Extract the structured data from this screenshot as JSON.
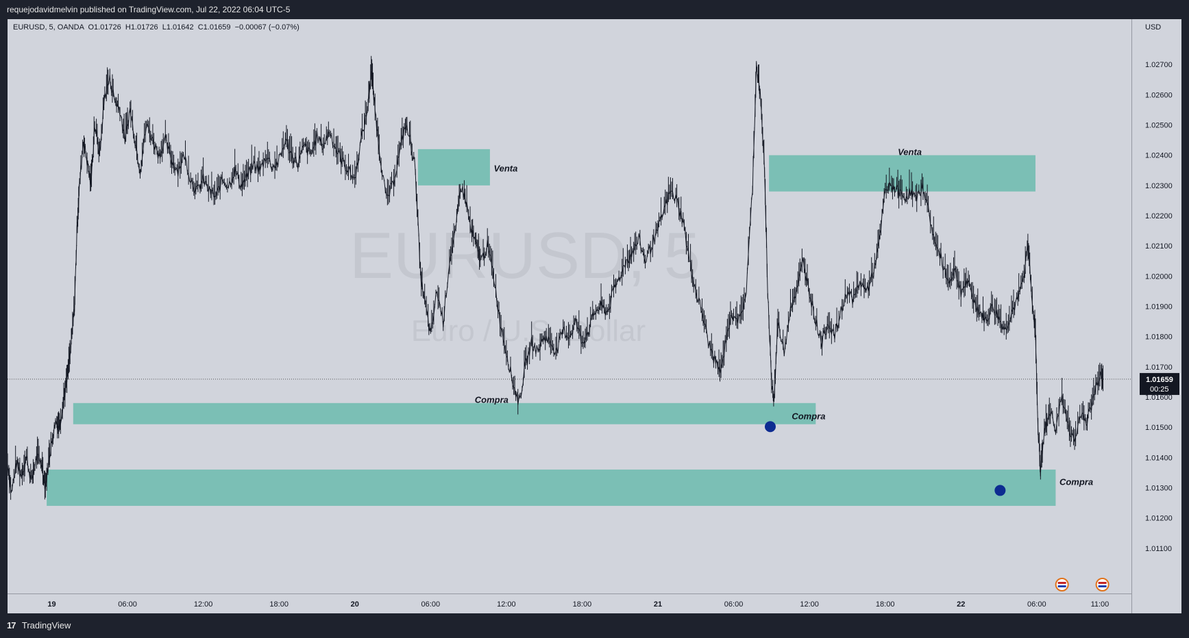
{
  "header": {
    "publisher_text": "requejodavidmelvin published on TradingView.com, Jul 22, 2022 06:04 UTC-5"
  },
  "footer": {
    "brand": "TradingView",
    "logo_icon": "tradingview-logo-icon"
  },
  "legend": {
    "symbol_line": "EURUSD, 5, OANDA",
    "open": "O1.01726",
    "high": "H1.01726",
    "low": "L1.01642",
    "close": "C1.01659",
    "change": "−0.00067 (−0.07%)"
  },
  "watermark": {
    "symbol": "EURUSD, 5",
    "description": "Euro / U.S. Dollar"
  },
  "price_axis": {
    "currency": "USD"
  },
  "price_tag": {
    "price": "1.01659",
    "countdown": "00:25"
  },
  "colors": {
    "zone": "#7bbfb5",
    "marker": "#0d2c91",
    "background": "#d1d4dc",
    "candle": "#131722"
  },
  "chart_data": {
    "type": "line",
    "symbol": "EURUSD",
    "interval": "5",
    "exchange": "OANDA",
    "ylim": [
      1.0095,
      1.0285
    ],
    "y_ticks": [
      1.011,
      1.012,
      1.013,
      1.014,
      1.015,
      1.016,
      1.017,
      1.018,
      1.019,
      1.02,
      1.021,
      1.022,
      1.023,
      1.024,
      1.025,
      1.026,
      1.027
    ],
    "y_tick_labels": [
      "1.01100",
      "1.01200",
      "1.01300",
      "1.01400",
      "1.01500",
      "1.01600",
      "1.01700",
      "1.01800",
      "1.01900",
      "1.02000",
      "1.02100",
      "1.02200",
      "1.02300",
      "1.02400",
      "1.02500",
      "1.02600",
      "1.02700"
    ],
    "x_ticks": [
      {
        "label": "19",
        "hours": 0,
        "bold": true
      },
      {
        "label": "06:00",
        "hours": 6
      },
      {
        "label": "12:00",
        "hours": 12
      },
      {
        "label": "18:00",
        "hours": 18
      },
      {
        "label": "20",
        "hours": 24,
        "bold": true
      },
      {
        "label": "06:00",
        "hours": 30
      },
      {
        "label": "12:00",
        "hours": 36
      },
      {
        "label": "18:00",
        "hours": 42
      },
      {
        "label": "21",
        "hours": 48,
        "bold": true
      },
      {
        "label": "06:00",
        "hours": 54
      },
      {
        "label": "12:00",
        "hours": 60
      },
      {
        "label": "18:00",
        "hours": 66
      },
      {
        "label": "22",
        "hours": 72,
        "bold": true
      },
      {
        "label": "06:00",
        "hours": 78
      },
      {
        "label": "11:00",
        "hours": 83
      }
    ],
    "xlim_hours": [
      -3.5,
      85.5
    ],
    "price_path": [
      [
        -3.5,
        1.0138
      ],
      [
        -3.2,
        1.0128
      ],
      [
        -2.8,
        1.0138
      ],
      [
        -2.4,
        1.0134
      ],
      [
        -2.0,
        1.014
      ],
      [
        -1.6,
        1.0132
      ],
      [
        -1.2,
        1.014
      ],
      [
        -0.8,
        1.0138
      ],
      [
        -0.5,
        1.013
      ],
      [
        -0.2,
        1.014
      ],
      [
        0.0,
        1.0145
      ],
      [
        0.3,
        1.0152
      ],
      [
        0.6,
        1.015
      ],
      [
        0.9,
        1.0158
      ],
      [
        1.2,
        1.0165
      ],
      [
        1.5,
        1.0175
      ],
      [
        1.8,
        1.019
      ],
      [
        2.0,
        1.0215
      ],
      [
        2.2,
        1.023
      ],
      [
        2.5,
        1.0245
      ],
      [
        2.8,
        1.0238
      ],
      [
        3.1,
        1.023
      ],
      [
        3.4,
        1.025
      ],
      [
        3.8,
        1.024
      ],
      [
        4.2,
        1.026
      ],
      [
        4.6,
        1.0265
      ],
      [
        5.0,
        1.0258
      ],
      [
        5.4,
        1.0255
      ],
      [
        5.8,
        1.0245
      ],
      [
        6.2,
        1.0255
      ],
      [
        6.6,
        1.0245
      ],
      [
        7.0,
        1.0235
      ],
      [
        7.5,
        1.025
      ],
      [
        8.0,
        1.0245
      ],
      [
        8.5,
        1.024
      ],
      [
        9.0,
        1.0245
      ],
      [
        9.5,
        1.0238
      ],
      [
        10.0,
        1.0235
      ],
      [
        10.5,
        1.024
      ],
      [
        11.0,
        1.0232
      ],
      [
        11.5,
        1.0228
      ],
      [
        12.0,
        1.0232
      ],
      [
        12.5,
        1.0228
      ],
      [
        13.0,
        1.0226
      ],
      [
        13.5,
        1.0232
      ],
      [
        14.0,
        1.023
      ],
      [
        14.5,
        1.0235
      ],
      [
        15.0,
        1.023
      ],
      [
        15.5,
        1.0233
      ],
      [
        16.0,
        1.0237
      ],
      [
        16.5,
        1.0235
      ],
      [
        17.0,
        1.024
      ],
      [
        17.5,
        1.0236
      ],
      [
        18.0,
        1.0238
      ],
      [
        18.5,
        1.0245
      ],
      [
        19.0,
        1.024
      ],
      [
        19.5,
        1.0237
      ],
      [
        20.0,
        1.0243
      ],
      [
        20.5,
        1.024
      ],
      [
        21.0,
        1.0246
      ],
      [
        21.5,
        1.0243
      ],
      [
        22.0,
        1.0248
      ],
      [
        22.5,
        1.0242
      ],
      [
        23.0,
        1.0238
      ],
      [
        23.5,
        1.0235
      ],
      [
        24.0,
        1.0232
      ],
      [
        24.5,
        1.0245
      ],
      [
        25.0,
        1.0255
      ],
      [
        25.3,
        1.0268
      ],
      [
        25.6,
        1.0255
      ],
      [
        26.0,
        1.024
      ],
      [
        26.5,
        1.0225
      ],
      [
        27.0,
        1.023
      ],
      [
        27.5,
        1.024
      ],
      [
        28.0,
        1.025
      ],
      [
        28.4,
        1.0245
      ],
      [
        28.8,
        1.0235
      ],
      [
        29.2,
        1.02
      ],
      [
        29.6,
        1.019
      ],
      [
        30.0,
        1.018
      ],
      [
        30.5,
        1.0195
      ],
      [
        31.0,
        1.0185
      ],
      [
        31.5,
        1.0205
      ],
      [
        32.0,
        1.0215
      ],
      [
        32.4,
        1.023
      ],
      [
        32.8,
        1.0225
      ],
      [
        33.2,
        1.0215
      ],
      [
        33.6,
        1.021
      ],
      [
        34.0,
        1.0205
      ],
      [
        34.5,
        1.021
      ],
      [
        35.0,
        1.02
      ],
      [
        35.5,
        1.0185
      ],
      [
        36.0,
        1.0175
      ],
      [
        36.5,
        1.0165
      ],
      [
        37.0,
        1.0158
      ],
      [
        37.5,
        1.017
      ],
      [
        38.0,
        1.0178
      ],
      [
        38.5,
        1.0175
      ],
      [
        39.0,
        1.018
      ],
      [
        39.5,
        1.0178
      ],
      [
        40.0,
        1.0175
      ],
      [
        40.5,
        1.0182
      ],
      [
        41.0,
        1.018
      ],
      [
        41.5,
        1.0185
      ],
      [
        42.0,
        1.0178
      ],
      [
        42.5,
        1.0182
      ],
      [
        43.0,
        1.0188
      ],
      [
        43.5,
        1.019
      ],
      [
        44.0,
        1.0188
      ],
      [
        44.5,
        1.0195
      ],
      [
        45.0,
        1.02
      ],
      [
        45.5,
        1.0205
      ],
      [
        46.0,
        1.0208
      ],
      [
        46.5,
        1.0212
      ],
      [
        47.0,
        1.0205
      ],
      [
        47.5,
        1.021
      ],
      [
        48.0,
        1.0215
      ],
      [
        48.5,
        1.0222
      ],
      [
        49.0,
        1.0228
      ],
      [
        49.5,
        1.0225
      ],
      [
        50.0,
        1.0218
      ],
      [
        50.5,
        1.0205
      ],
      [
        51.0,
        1.0195
      ],
      [
        51.5,
        1.0188
      ],
      [
        52.0,
        1.0178
      ],
      [
        52.5,
        1.0172
      ],
      [
        53.0,
        1.0168
      ],
      [
        53.5,
        1.0182
      ],
      [
        54.0,
        1.0188
      ],
      [
        54.5,
        1.0185
      ],
      [
        55.0,
        1.0195
      ],
      [
        55.5,
        1.023
      ],
      [
        55.8,
        1.027
      ],
      [
        56.1,
        1.026
      ],
      [
        56.4,
        1.024
      ],
      [
        56.7,
        1.0195
      ],
      [
        57.0,
        1.0165
      ],
      [
        57.2,
        1.0158
      ],
      [
        57.5,
        1.0185
      ],
      [
        58.0,
        1.0175
      ],
      [
        58.5,
        1.019
      ],
      [
        59.0,
        1.0195
      ],
      [
        59.5,
        1.0205
      ],
      [
        60.0,
        1.0195
      ],
      [
        60.5,
        1.0185
      ],
      [
        61.0,
        1.0178
      ],
      [
        61.5,
        1.0185
      ],
      [
        62.0,
        1.018
      ],
      [
        62.5,
        1.0188
      ],
      [
        63.0,
        1.0195
      ],
      [
        63.5,
        1.0192
      ],
      [
        64.0,
        1.0198
      ],
      [
        64.5,
        1.0195
      ],
      [
        65.0,
        1.02
      ],
      [
        65.5,
        1.021
      ],
      [
        66.0,
        1.0228
      ],
      [
        66.5,
        1.023
      ],
      [
        67.0,
        1.0228
      ],
      [
        67.5,
        1.0226
      ],
      [
        68.0,
        1.0228
      ],
      [
        68.5,
        1.0225
      ],
      [
        69.0,
        1.023
      ],
      [
        69.5,
        1.022
      ],
      [
        70.0,
        1.021
      ],
      [
        70.5,
        1.0205
      ],
      [
        71.0,
        1.0198
      ],
      [
        71.5,
        1.0202
      ],
      [
        72.0,
        1.0195
      ],
      [
        72.5,
        1.0198
      ],
      [
        73.0,
        1.0192
      ],
      [
        73.5,
        1.0188
      ],
      [
        74.0,
        1.0185
      ],
      [
        74.5,
        1.019
      ],
      [
        75.0,
        1.0186
      ],
      [
        75.5,
        1.0182
      ],
      [
        76.0,
        1.0188
      ],
      [
        76.5,
        1.0192
      ],
      [
        77.0,
        1.02
      ],
      [
        77.3,
        1.021
      ],
      [
        77.6,
        1.0195
      ],
      [
        77.9,
        1.018
      ],
      [
        78.1,
        1.015
      ],
      [
        78.3,
        1.0135
      ],
      [
        78.6,
        1.0148
      ],
      [
        79.0,
        1.0155
      ],
      [
        79.5,
        1.015
      ],
      [
        80.0,
        1.016
      ],
      [
        80.5,
        1.015
      ],
      [
        81.0,
        1.0145
      ],
      [
        81.5,
        1.0155
      ],
      [
        82.0,
        1.0152
      ],
      [
        82.5,
        1.016
      ],
      [
        83.0,
        1.0168
      ],
      [
        83.3,
        1.0166
      ]
    ],
    "zones": [
      {
        "label": "Venta",
        "x0": 29.0,
        "x1": 34.7,
        "y_top": 1.0242,
        "y_bottom": 1.023,
        "label_x": 35.0,
        "label_price": 1.02355
      },
      {
        "label": "Venta",
        "x0": 56.8,
        "x1": 77.9,
        "y_top": 1.024,
        "y_bottom": 1.0228,
        "label_x": 67.0,
        "label_price": 1.0241
      },
      {
        "label": "Compra",
        "x0": 1.7,
        "x1": 60.5,
        "y_top": 1.0158,
        "y_bottom": 1.0151,
        "label_x": 33.5,
        "label_price": 1.0159
      },
      {
        "label": "Compra",
        "x0": -0.4,
        "x1": 79.5,
        "y_top": 1.0136,
        "y_bottom": 1.0124,
        "label_x": 79.8,
        "label_price": 1.01318
      }
    ],
    "zone_labels": [
      "Venta",
      "Venta",
      "Compra",
      "Compra"
    ],
    "extra_labels": [
      {
        "text": "Compra",
        "x": 58.6,
        "price": 1.01535
      }
    ],
    "markers": [
      {
        "x": 56.9,
        "price": 1.01502
      },
      {
        "x": 75.1,
        "price": 1.01291
      }
    ],
    "last_price": 1.01659,
    "last_price_line": true,
    "events": [
      {
        "x": 80.0,
        "icon": "us-flag-icon"
      },
      {
        "x": 83.2,
        "icon": "us-flag-icon"
      }
    ]
  }
}
